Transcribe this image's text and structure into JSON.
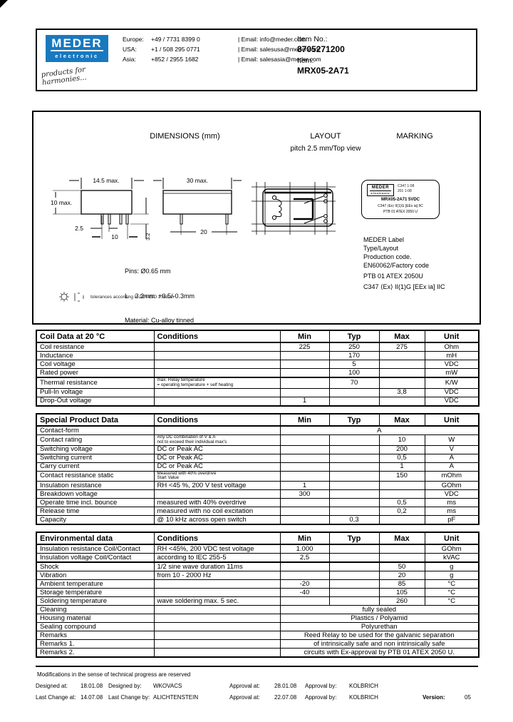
{
  "header": {
    "logo": {
      "line1": "MEDER",
      "line2": "electronic",
      "bg": "#1879c0"
    },
    "tagline": "products for\n    harmonies...",
    "contacts": [
      {
        "region": "Europe:",
        "phone": "+49 / 7731 8399 0",
        "email": "| Email: info@meder.com"
      },
      {
        "region": "USA:",
        "phone": "+1 / 508 295 0771",
        "email": "| Email: salesusa@meder.com"
      },
      {
        "region": "Asia:",
        "phone": "+852 / 2955 1682",
        "email": "| Email: salesasia@meder.com"
      }
    ],
    "item_no_label": "Item No.:",
    "item_no": "8705271200",
    "item_label": "Item:",
    "item": "MRX05-2A71"
  },
  "drawing": {
    "dimensions_title": "DIMENSIONS (mm)",
    "layout_title": "LAYOUT",
    "layout_subtitle": "pitch 2.5 mm/Top view",
    "marking_title": "MARKING",
    "dims": {
      "body_width": "14.5 max.",
      "body_height": "10 max.",
      "pin_pitch": "2.5",
      "pin_span": "10",
      "pin_length": "3.2",
      "length": "30 max.",
      "pin_distance": "20"
    },
    "notes": [
      "Pins: Ø0.65 mm",
      "L    3.2mm  +0.5/-0.3mm",
      "Material: Cu-alloy tinned"
    ],
    "label": {
      "logo_line1": "MEDER",
      "logo_line2": "electronic",
      "code1": "C347 1-08",
      "code2": "201 1-08",
      "line1": "MRX05-2A71  5VDC",
      "line2": "C347 ⟨Ex⟩ II(1)G [EEx ia] IIC",
      "line3": "PTB 01 ATEX 2050 U"
    },
    "legend": [
      "MEDER Label",
      "Type/Layout",
      "Production code.",
      "EN60062/Factory code",
      "PTB 01 ATEX 2050U",
      "C347 ⟨Ex⟩ II(1)G [EEx ia] IIC"
    ],
    "tolerance_note": "tolerances according to DIN ISO 2768-m"
  },
  "tables": [
    {
      "title": "Coil Data at 20 °C",
      "headers": [
        "Conditions",
        "Min",
        "Typ",
        "Max",
        "Unit"
      ],
      "rows": [
        {
          "name": "Coil resistance",
          "min": "225",
          "typ": "250",
          "max": "275",
          "unit": "Ohm"
        },
        {
          "name": "Inductance",
          "typ": "170",
          "unit": "mH"
        },
        {
          "name": "Coil voltage",
          "typ": "5",
          "unit": "VDC"
        },
        {
          "name": "Rated power",
          "typ": "100",
          "unit": "mW",
          "thick_below": true
        },
        {
          "name": "Thermal resistance",
          "cond": "max. Relay temperature\n=  operating temperature + self heating",
          "cond_small": true,
          "typ": "70",
          "unit": "K/W"
        },
        {
          "name": "Pull-In voltage",
          "max": "3,8",
          "unit": "VDC"
        },
        {
          "name": "Drop-Out voltage",
          "min": "1",
          "unit": "VDC"
        }
      ]
    },
    {
      "title": "Special Product Data",
      "headers": [
        "Conditions",
        "Min",
        "Typ",
        "Max",
        "Unit"
      ],
      "rows": [
        {
          "name": "Contact-form",
          "span": "A"
        },
        {
          "name": "Contact rating",
          "cond": "Any DC combination of V & A\nnot to exceed their individual max's",
          "cond_small": true,
          "max": "10",
          "unit": "W"
        },
        {
          "name": "Switching voltage",
          "cond": "DC or Peak AC",
          "max": "200",
          "unit": "V"
        },
        {
          "name": "Switching current",
          "cond": "DC or Peak AC",
          "max": "0,5",
          "unit": "A"
        },
        {
          "name": "Carry current",
          "cond": "DC or Peak AC",
          "max": "1",
          "unit": "A"
        },
        {
          "name": "Contact resistance static",
          "cond": "Measured with 40% overdrive\nStart Value",
          "cond_small": true,
          "max": "150",
          "unit": "mOhm"
        },
        {
          "name": "Insulation resistance",
          "cond": "RH <45 %, 200 V test voltage",
          "min": "1",
          "unit": "GOhm"
        },
        {
          "name": "Breakdown voltage",
          "min": "300",
          "unit": "VDC"
        },
        {
          "name": "Operate time incl. bounce",
          "cond": "measured with 40% overdrive",
          "max": "0,5",
          "unit": "ms"
        },
        {
          "name": "Release time",
          "cond": "measured with no coil excitation",
          "max": "0,2",
          "unit": "ms"
        },
        {
          "name": "Capacity",
          "cond": "@ 10 kHz  across open switch",
          "typ": "0,3",
          "unit": "pF"
        }
      ]
    },
    {
      "title": "Environmental data",
      "headers": [
        "Conditions",
        "Min",
        "Typ",
        "Max",
        "Unit"
      ],
      "rows": [
        {
          "name": "Insulation resistance Coil/Contact",
          "cond": "RH <45%, 200 VDC test voltage",
          "min": "1.000",
          "unit": "GOhm"
        },
        {
          "name": "Insulation voltage Coil/Contact",
          "cond": "according to IEC 255-5",
          "min": "2,5",
          "unit": "kVAC",
          "thick_below": true
        },
        {
          "name": "Shock",
          "cond": "1/2 sine wave duration 11ms",
          "max": "50",
          "unit": "g"
        },
        {
          "name": "Vibration",
          "cond": "from  10 - 2000 Hz",
          "max": "20",
          "unit": "g"
        },
        {
          "name": "Ambient temperature",
          "min": "-20",
          "max": "85",
          "unit": "°C"
        },
        {
          "name": "Storage temperature",
          "min": "-40",
          "max": "105",
          "unit": "°C"
        },
        {
          "name": "Soldering temperature",
          "cond": "wave soldering max. 5 sec.",
          "max": "260",
          "unit": "°C"
        },
        {
          "name": "Cleaning",
          "span": "fully sealed"
        },
        {
          "name": "Housing material",
          "span": "Plastics / Polyamid"
        },
        {
          "name": "Sealing compound",
          "span": "Polyurethan"
        },
        {
          "name": "Remarks",
          "span": "Reed Relay to be used for the galvanic separation"
        },
        {
          "name": "Remarks 1.",
          "span": "of intrinsically safe and non intrinsically safe"
        },
        {
          "name": "Remarks 2.",
          "span": "circuits with Ex-approval by  PTB 01 ATEX 2050 U."
        }
      ]
    }
  ],
  "footer": {
    "note": "Modifications in the sense of technical progress are reserved",
    "fields": [
      {
        "label": "Designed at:",
        "value": "18.01.08"
      },
      {
        "label": "Designed by:",
        "value": "WKOVACS"
      },
      {
        "label": "Approval at:",
        "value": "28.01.08"
      },
      {
        "label": "Approval by:",
        "value": "KOLBRICH"
      },
      {
        "label": "Last Change at:",
        "value": "14.07.08"
      },
      {
        "label": "Last Change by:",
        "value": "ALICHTENSTEIN"
      },
      {
        "label": "Approval at:",
        "value": "22.07.08"
      },
      {
        "label": "Approval by:",
        "value": "KOLBRICH"
      },
      {
        "label": "Version:",
        "value": "05"
      }
    ]
  }
}
